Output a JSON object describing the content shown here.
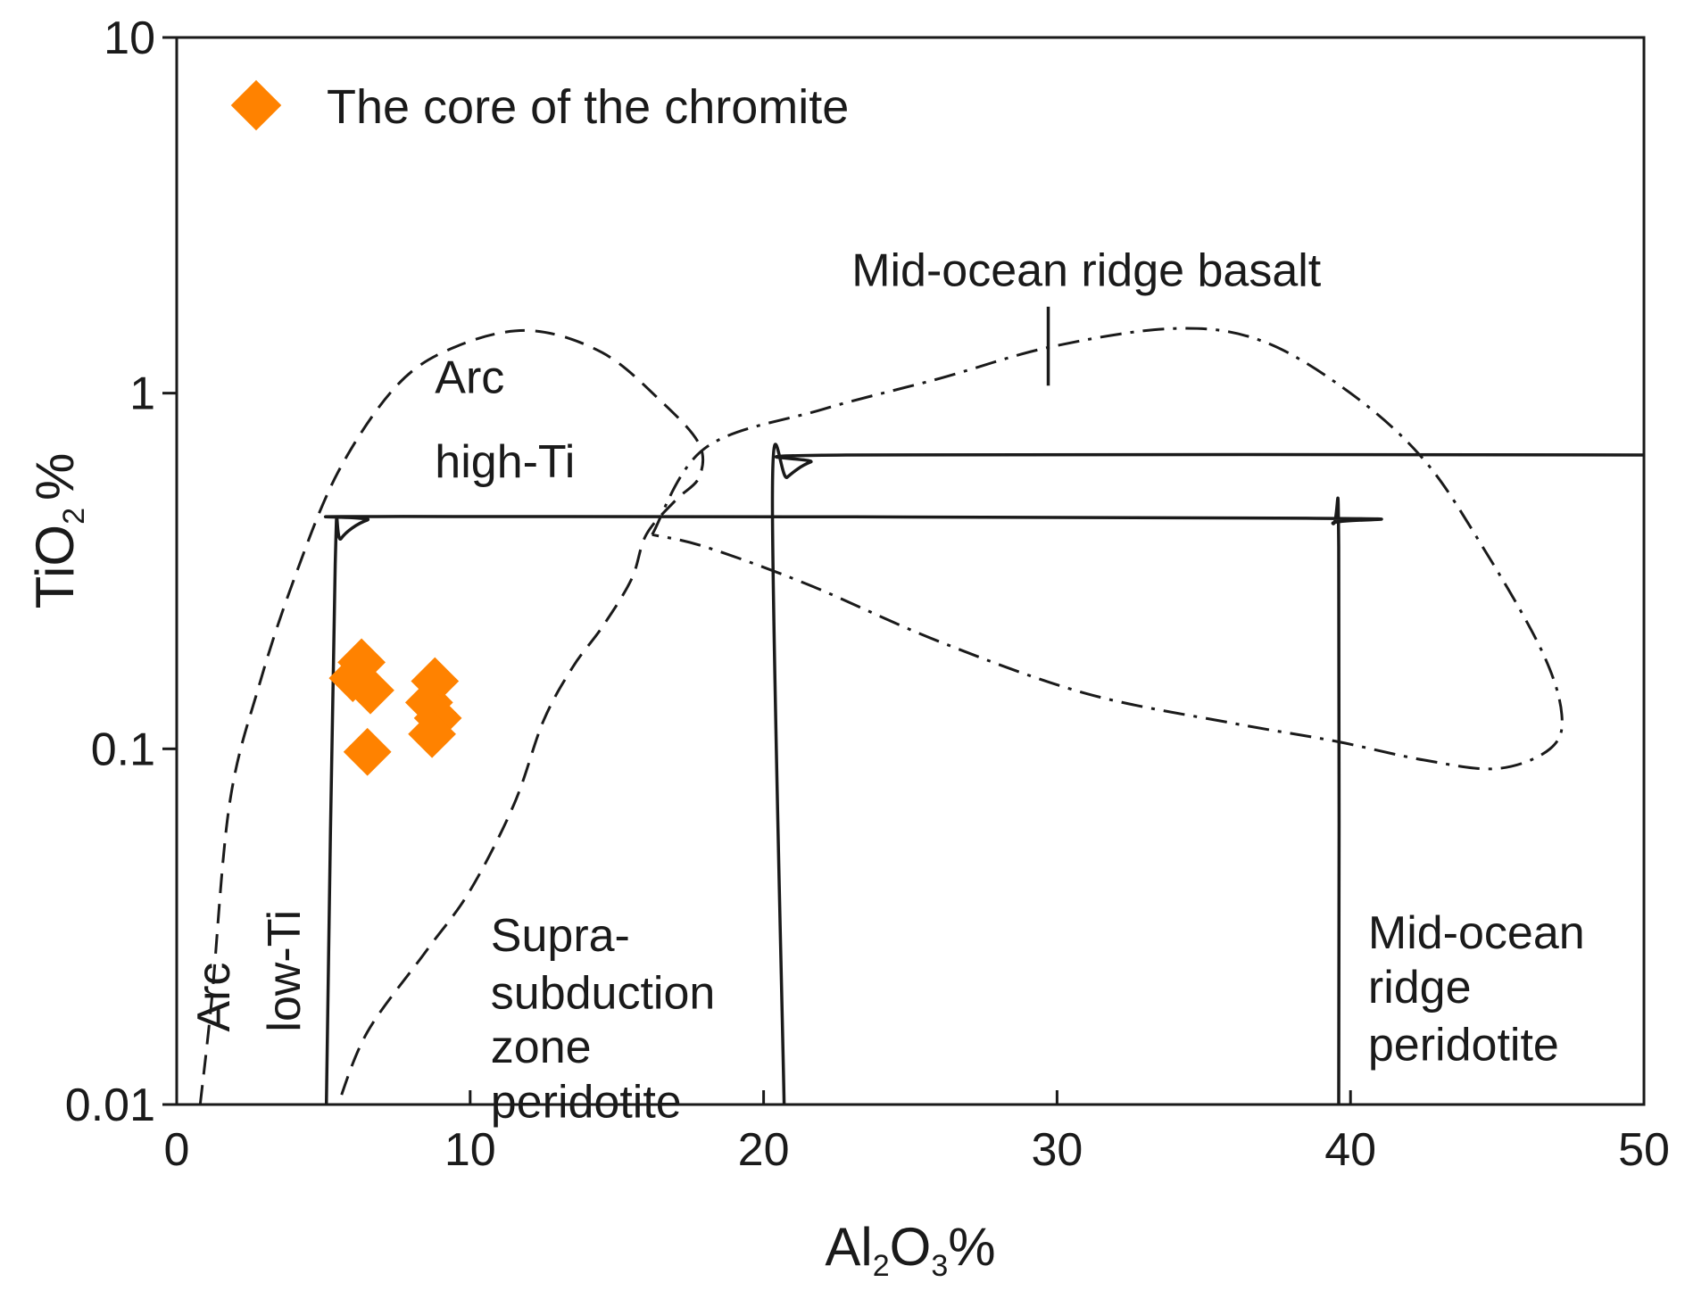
{
  "chart_data": {
    "type": "scatter",
    "title": "",
    "xlabel": {
      "prefix": "Al",
      "sub1": "2",
      "mid": "O",
      "sub2": "3",
      "suffix": "%"
    },
    "ylabel": {
      "prefix": "TiO",
      "sub": "2",
      "suffix": "%"
    },
    "xlim": [
      0,
      50
    ],
    "ylim": [
      0.01,
      10
    ],
    "yscale": "log",
    "x_ticks": [
      0,
      10,
      20,
      30,
      40,
      50
    ],
    "x_tick_labels": [
      "0",
      "10",
      "20",
      "30",
      "40",
      "50"
    ],
    "y_ticks": [
      0.01,
      0.1,
      1,
      10
    ],
    "y_tick_labels": [
      "0.01",
      "0.1",
      "1",
      "10"
    ],
    "legend": {
      "position": "top-left",
      "entries": [
        "The core of the chromite"
      ]
    },
    "series": [
      {
        "name": "The core of the chromite",
        "marker": "diamond",
        "color": "#ff8200",
        "points": [
          {
            "x": 6.3,
            "y": 0.175
          },
          {
            "x": 6.0,
            "y": 0.158
          },
          {
            "x": 6.6,
            "y": 0.146
          },
          {
            "x": 8.8,
            "y": 0.155
          },
          {
            "x": 8.6,
            "y": 0.135
          },
          {
            "x": 8.9,
            "y": 0.122
          },
          {
            "x": 8.7,
            "y": 0.11
          },
          {
            "x": 6.5,
            "y": 0.098
          }
        ]
      }
    ],
    "fields": [
      {
        "name": "Arc high-Ti",
        "style": "dashed",
        "points": [
          [
            0.8,
            0.01
          ],
          [
            1.2,
            0.02
          ],
          [
            1.8,
            0.07
          ],
          [
            2.8,
            0.15
          ],
          [
            4.0,
            0.3
          ],
          [
            5.5,
            0.6
          ],
          [
            7.5,
            1.05
          ],
          [
            9.5,
            1.35
          ],
          [
            12.0,
            1.5
          ],
          [
            14.5,
            1.3
          ],
          [
            16.5,
            0.95
          ],
          [
            17.8,
            0.72
          ],
          [
            17.8,
            0.58
          ],
          [
            17.0,
            0.5
          ],
          [
            16.0,
            0.4
          ],
          [
            15.5,
            0.3
          ],
          [
            14.5,
            0.22
          ],
          [
            13.5,
            0.17
          ],
          [
            12.5,
            0.12
          ],
          [
            11.5,
            0.07
          ],
          [
            10.0,
            0.04
          ],
          [
            8.5,
            0.027
          ],
          [
            6.5,
            0.016
          ],
          [
            5.5,
            0.01
          ]
        ]
      },
      {
        "name": "Mid-ocean ridge basalt",
        "style": "dash-dot",
        "points": [
          [
            16.2,
            0.4
          ],
          [
            18.0,
            0.7
          ],
          [
            22.0,
            0.9
          ],
          [
            26.0,
            1.1
          ],
          [
            29.8,
            1.35
          ],
          [
            34.0,
            1.52
          ],
          [
            37.0,
            1.4
          ],
          [
            40.0,
            1.0
          ],
          [
            42.5,
            0.65
          ],
          [
            44.5,
            0.37
          ],
          [
            46.5,
            0.19
          ],
          [
            47.2,
            0.125
          ],
          [
            46.8,
            0.1
          ],
          [
            45.0,
            0.088
          ],
          [
            42.5,
            0.093
          ],
          [
            39.5,
            0.105
          ],
          [
            36.0,
            0.118
          ],
          [
            31.0,
            0.143
          ],
          [
            26.0,
            0.2
          ],
          [
            21.5,
            0.29
          ],
          [
            18.0,
            0.37
          ],
          [
            16.2,
            0.4
          ]
        ]
      },
      {
        "name": "Supra-subduction zone peridotite",
        "style": "solid",
        "points": [
          [
            5.1,
            0.01
          ],
          [
            5.4,
            0.33
          ],
          [
            5.6,
            0.39
          ],
          [
            6.5,
            0.44
          ],
          [
            7.7,
            0.45
          ],
          [
            38.5,
            0.445
          ],
          [
            39.4,
            0.43
          ],
          [
            39.6,
            0.37
          ],
          [
            39.6,
            0.01
          ]
        ]
      },
      {
        "name": "Mid-ocean ridge peridotite",
        "style": "solid",
        "points": [
          [
            20.7,
            0.01
          ],
          [
            20.3,
            0.52
          ],
          [
            20.8,
            0.58
          ],
          [
            21.6,
            0.64
          ],
          [
            22.8,
            0.67
          ],
          [
            50,
            0.67
          ]
        ]
      },
      {
        "name": "Mid-ocean ridge basalt marker",
        "style": "solid",
        "points": [
          [
            29.7,
            1.75
          ],
          [
            29.7,
            1.05
          ]
        ]
      }
    ],
    "annotations": [
      {
        "text": "Arc",
        "x": 8.8,
        "y": 1.0
      },
      {
        "text": "high-Ti",
        "x": 8.8,
        "y": 0.58
      },
      {
        "text": "Mid-ocean ridge basalt",
        "x": 23.0,
        "y": 2.0
      },
      {
        "text": "Supra-",
        "x": 10.7,
        "y": 0.027
      },
      {
        "text": "subduction",
        "x": 10.7,
        "y": 0.0186
      },
      {
        "text": "zone",
        "x": 10.7,
        "y": 0.0131
      },
      {
        "text": "peridotite",
        "x": 10.7,
        "y": 0.0092
      },
      {
        "text": "Mid-ocean",
        "x": 40.6,
        "y": 0.0275
      },
      {
        "text": "ridge",
        "x": 40.6,
        "y": 0.0193
      },
      {
        "text": "peridotite",
        "x": 40.6,
        "y": 0.0133
      },
      {
        "text": "Arc",
        "x": 1.8,
        "y": 0.016,
        "rotate": true
      },
      {
        "text": "low-Ti",
        "x": 4.2,
        "y": 0.016,
        "rotate": true
      }
    ]
  }
}
